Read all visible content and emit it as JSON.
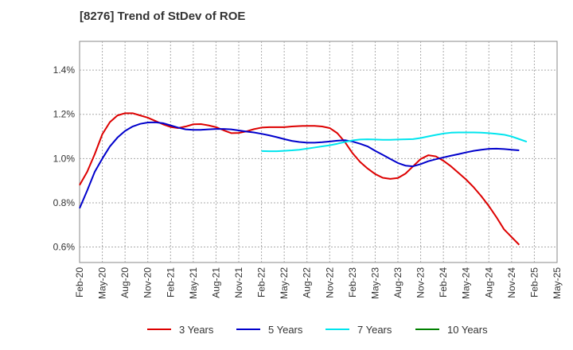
{
  "chart_data": {
    "type": "line",
    "title": "[8276]  Trend of StDev of ROE",
    "xlabel": "",
    "ylabel": "",
    "x_ticks": [
      "Feb-20",
      "May-20",
      "Aug-20",
      "Nov-20",
      "Feb-21",
      "May-21",
      "Aug-21",
      "Nov-21",
      "Feb-22",
      "May-22",
      "Aug-22",
      "Nov-22",
      "Feb-23",
      "May-23",
      "Aug-23",
      "Nov-23",
      "Feb-24",
      "May-24",
      "Aug-24",
      "Nov-24",
      "Feb-25",
      "May-25"
    ],
    "y_ticks": [
      0.6,
      0.8,
      1.0,
      1.2,
      1.4
    ],
    "y_tick_labels": [
      "0.6%",
      "0.8%",
      "1.0%",
      "1.2%",
      "1.4%"
    ],
    "ylim": [
      0.53,
      1.53
    ],
    "grid": true,
    "legend_position": "bottom",
    "series": [
      {
        "name": "3 Years",
        "color": "#dd0000",
        "start_index": 0,
        "values": [
          0.88,
          0.94,
          1.02,
          1.11,
          1.165,
          1.195,
          1.205,
          1.205,
          1.195,
          1.185,
          1.17,
          1.155,
          1.143,
          1.138,
          1.145,
          1.155,
          1.156,
          1.15,
          1.142,
          1.128,
          1.115,
          1.116,
          1.123,
          1.133,
          1.14,
          1.142,
          1.142,
          1.142,
          1.145,
          1.147,
          1.148,
          1.148,
          1.145,
          1.138,
          1.115,
          1.075,
          1.025,
          0.985,
          0.955,
          0.93,
          0.913,
          0.908,
          0.912,
          0.932,
          0.965,
          0.998,
          1.015,
          1.01,
          0.99,
          0.965,
          0.935,
          0.905,
          0.87,
          0.83,
          0.785,
          0.735,
          0.68,
          0.645,
          0.61
        ]
      },
      {
        "name": "5 Years",
        "color": "#0000cc",
        "start_index": 0,
        "values": [
          0.775,
          0.855,
          0.94,
          1.0,
          1.055,
          1.095,
          1.125,
          1.145,
          1.157,
          1.163,
          1.164,
          1.16,
          1.15,
          1.14,
          1.132,
          1.13,
          1.13,
          1.132,
          1.134,
          1.134,
          1.132,
          1.127,
          1.122,
          1.118,
          1.112,
          1.105,
          1.097,
          1.088,
          1.08,
          1.075,
          1.072,
          1.072,
          1.074,
          1.077,
          1.081,
          1.083,
          1.077,
          1.067,
          1.055,
          1.035,
          1.017,
          0.998,
          0.98,
          0.968,
          0.965,
          0.975,
          0.988,
          0.997,
          1.005,
          1.013,
          1.02,
          1.028,
          1.035,
          1.04,
          1.044,
          1.045,
          1.043,
          1.04,
          1.037
        ]
      },
      {
        "name": "7 Years",
        "color": "#00e5ee",
        "start_index": 24,
        "values": [
          1.034,
          1.033,
          1.033,
          1.035,
          1.037,
          1.04,
          1.045,
          1.05,
          1.055,
          1.06,
          1.067,
          1.075,
          1.082,
          1.086,
          1.087,
          1.086,
          1.085,
          1.085,
          1.086,
          1.087,
          1.088,
          1.093,
          1.1,
          1.107,
          1.113,
          1.117,
          1.118,
          1.118,
          1.118,
          1.117,
          1.115,
          1.112,
          1.108,
          1.1,
          1.088,
          1.076
        ]
      },
      {
        "name": "10 Years",
        "color": "#008000",
        "start_index": 0,
        "values": []
      }
    ]
  }
}
